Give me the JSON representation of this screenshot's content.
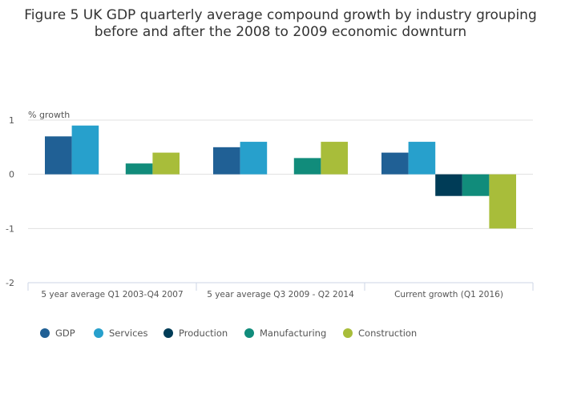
{
  "chart_data": {
    "type": "bar",
    "title": [
      "Figure 5 UK GDP quarterly average compound growth by industry grouping",
      "before and after the 2008 to 2009 economic downturn"
    ],
    "xlabel": "",
    "ylabel": "% growth",
    "ylim": [
      -2,
      1
    ],
    "yticks": [
      1,
      0,
      -1,
      -2
    ],
    "ytick_labels": [
      "1",
      "0",
      "-1",
      "-2"
    ],
    "grid": true,
    "legend_position": "bottom-left",
    "categories": [
      "5 year average Q1 2003-Q4 2007",
      "5 year average Q3 2009 - Q2 2014",
      "Current growth (Q1 2016)"
    ],
    "series": [
      {
        "name": "GDP",
        "color": "#206095",
        "values": [
          0.7,
          0.5,
          0.4
        ]
      },
      {
        "name": "Services",
        "color": "#27a0cc",
        "values": [
          0.9,
          0.6,
          0.6
        ]
      },
      {
        "name": "Production",
        "color": "#003c57",
        "values": [
          0.0,
          0.0,
          -0.4
        ]
      },
      {
        "name": "Manufacturing",
        "color": "#118c7b",
        "values": [
          0.2,
          0.3,
          -0.4
        ]
      },
      {
        "name": "Construction",
        "color": "#a8bd3a",
        "values": [
          0.4,
          0.6,
          -1.0
        ]
      }
    ]
  }
}
